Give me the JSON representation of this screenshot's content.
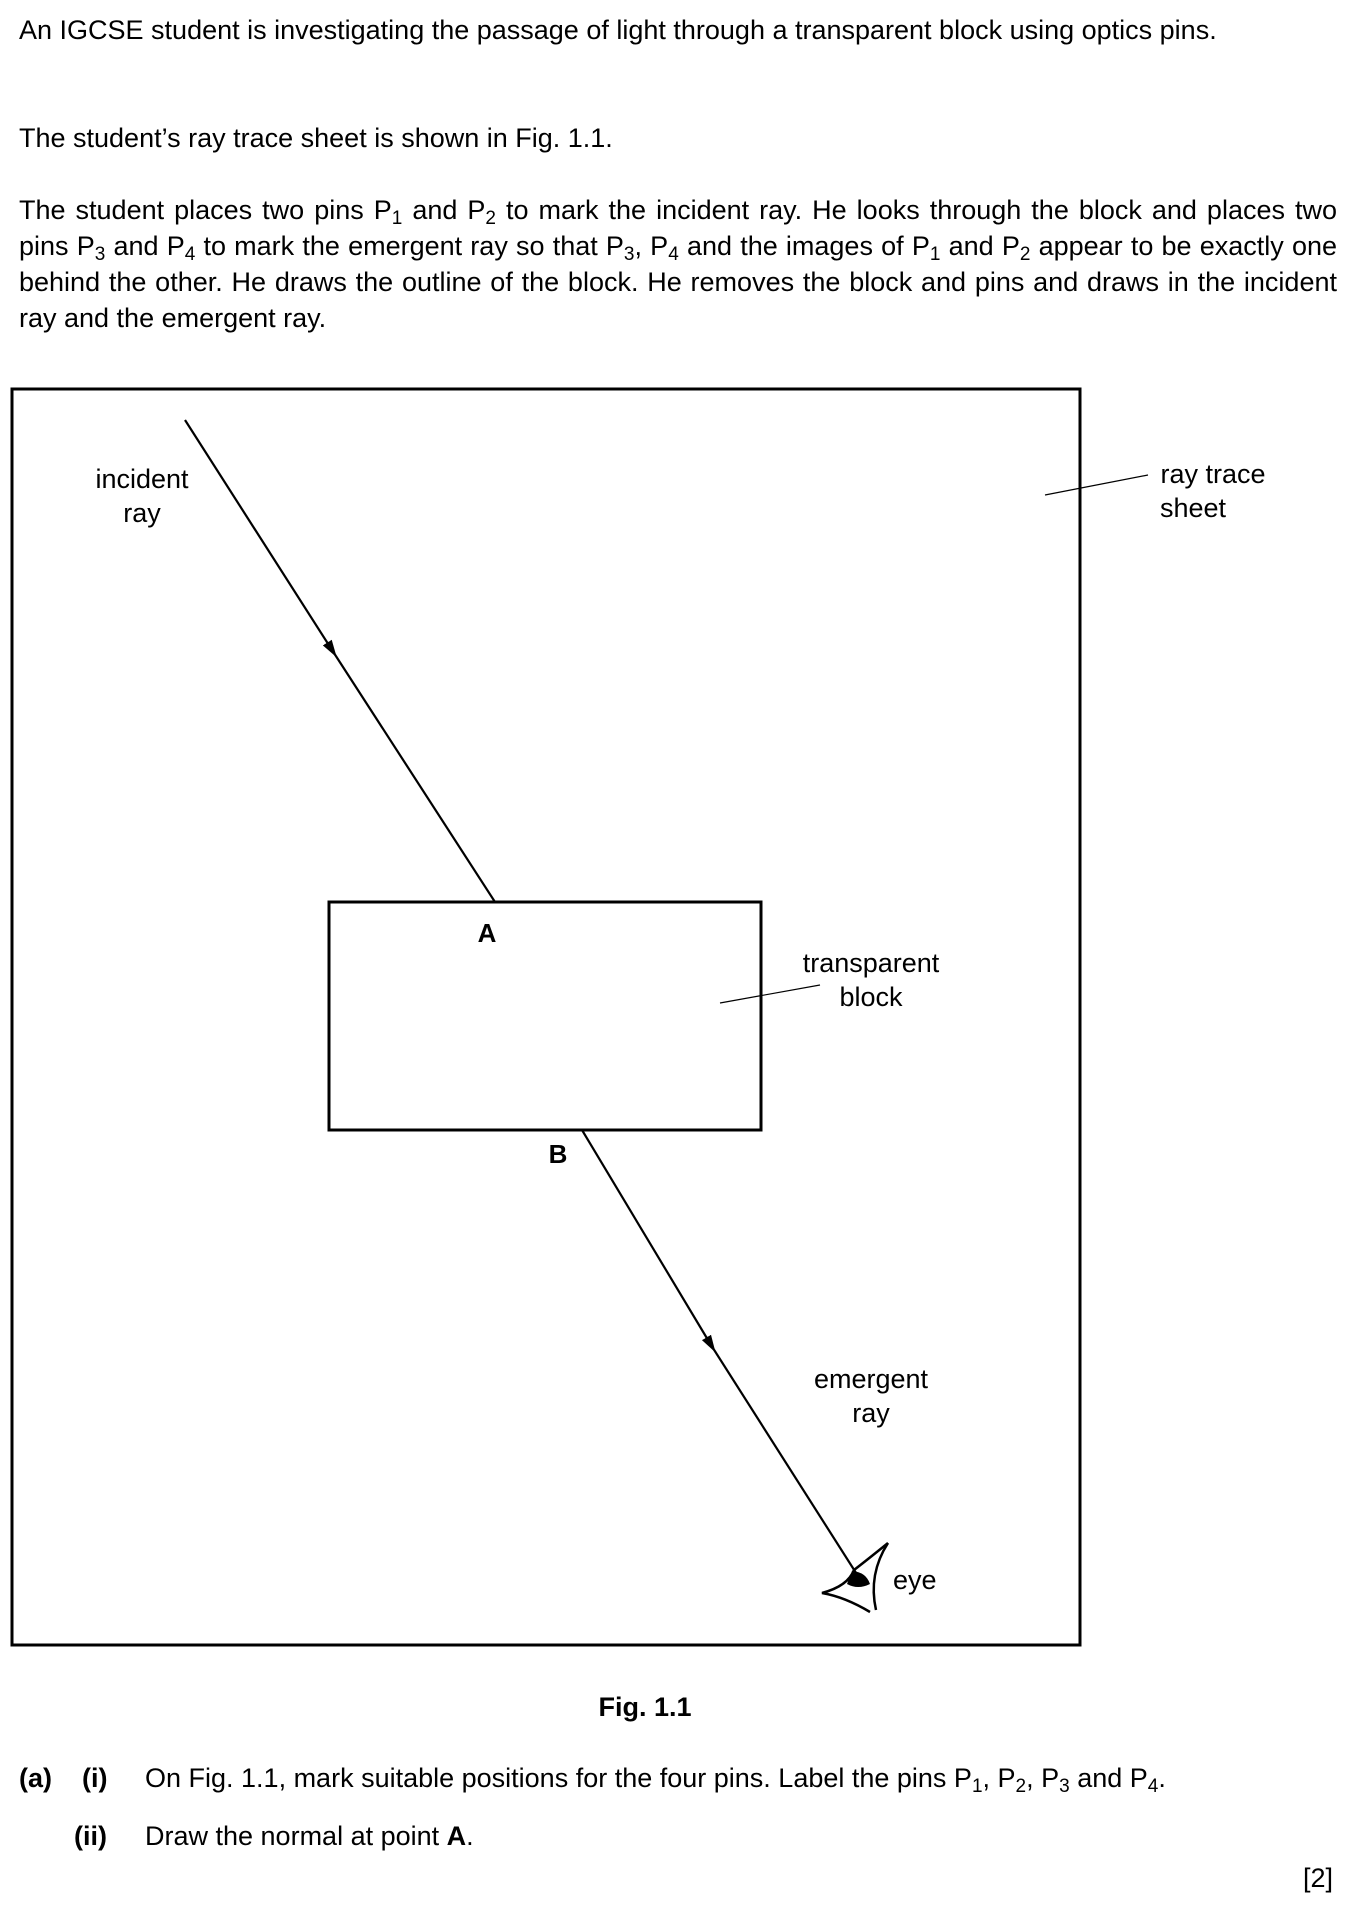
{
  "intro": {
    "line1": "An IGCSE student is investigating the passage of light through a transparent block using optics pins.",
    "line2": "The student’s ray trace sheet is shown in Fig. 1.1.",
    "line3": {
      "a": "The student places two pins P",
      "s1": "1",
      "b": " and P",
      "s2": "2",
      "c": " to mark the incident ray. He looks through the block and places two pins P",
      "s3": "3",
      "d": " and P",
      "s4": "4",
      "e": " to mark the emergent ray so that P",
      "s5": "3",
      "f": ", P",
      "s6": "4",
      "g": " and the images of P",
      "s7": "1",
      "h": " and P",
      "s8": "2",
      "i": " appear to be exactly one behind the other. He draws the outline of the block. He removes the block and pins and draws in the incident ray and the emergent ray."
    }
  },
  "figure": {
    "labels": {
      "incident_1": "incident",
      "incident_2": "ray",
      "sheet_1": "ray trace",
      "sheet_2": "sheet",
      "point_a": "A",
      "point_b": "B",
      "block_1": "transparent",
      "block_2": "block",
      "emergent_1": "emergent",
      "emergent_2": "ray",
      "eye": "eye"
    },
    "caption": "Fig. 1.1"
  },
  "questions": {
    "part": "(a)",
    "q1": {
      "num": "(i)",
      "text_a": "On Fig. 1.1, mark suitable positions for the four pins. Label the pins P",
      "s1": "1",
      "text_b": ", P",
      "s2": "2",
      "text_c": ", P",
      "s3": "3",
      "text_d": " and P",
      "s4": "4",
      "text_e": "."
    },
    "q2": {
      "num": "(ii)",
      "text_a": "Draw the normal at point ",
      "bold": "A",
      "text_b": "."
    },
    "marks": "[2]"
  }
}
